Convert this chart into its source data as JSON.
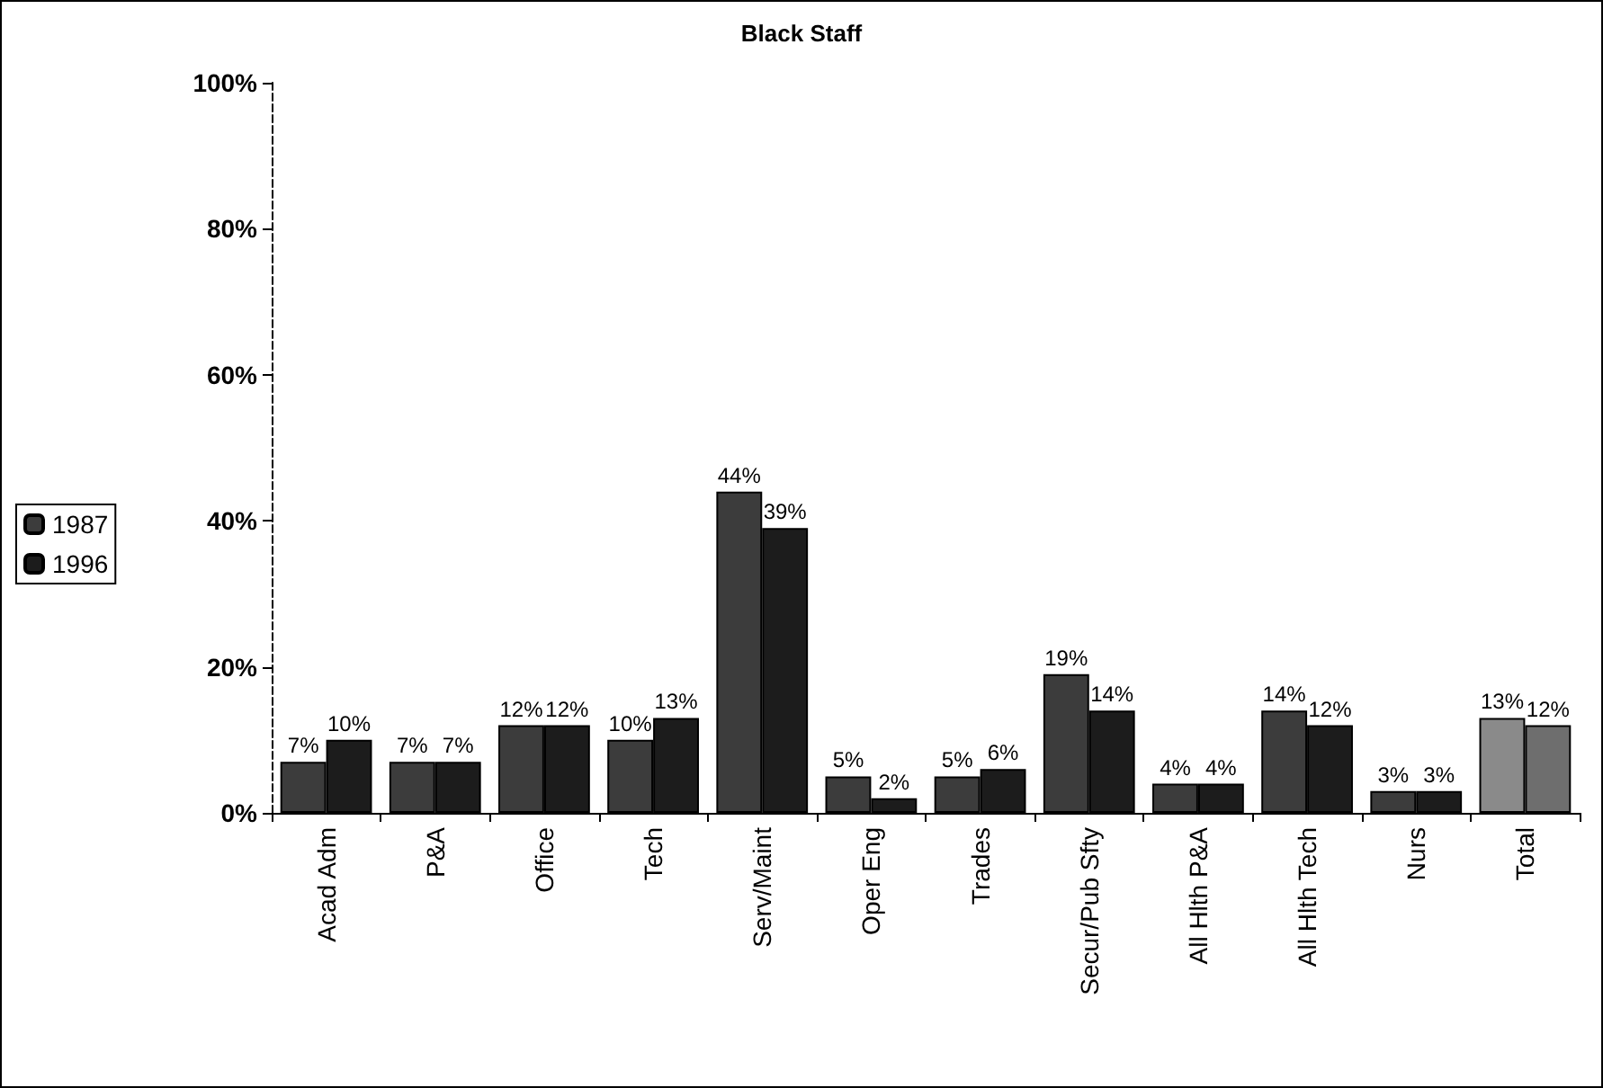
{
  "chart_data": {
    "type": "bar",
    "title": "Black Staff",
    "categories": [
      "Acad Adm",
      "P&A",
      "Office",
      "Tech",
      "Serv/Maint",
      "Oper Eng",
      "Trades",
      "Secur/Pub Sfty",
      "All Hlth P&A",
      "All Hlth Tech",
      "Nurs",
      "Total"
    ],
    "series": [
      {
        "name": "1987",
        "color": "#3c3c3c",
        "colors": [
          "#3c3c3c",
          "#3c3c3c",
          "#3c3c3c",
          "#3c3c3c",
          "#3c3c3c",
          "#3c3c3c",
          "#3c3c3c",
          "#3c3c3c",
          "#3c3c3c",
          "#3c3c3c",
          "#3c3c3c",
          "#8a8a8a"
        ],
        "values": [
          7,
          7,
          12,
          10,
          44,
          5,
          5,
          19,
          4,
          14,
          3,
          13
        ],
        "value_labels": [
          "7%",
          "7%",
          "12%",
          "10%",
          "44%",
          "5%",
          "5%",
          "19%",
          "4%",
          "14%",
          "3%",
          "13%"
        ]
      },
      {
        "name": "1996",
        "color": "#1c1c1c",
        "colors": [
          "#1c1c1c",
          "#1c1c1c",
          "#1c1c1c",
          "#1c1c1c",
          "#1c1c1c",
          "#1c1c1c",
          "#1c1c1c",
          "#1c1c1c",
          "#1c1c1c",
          "#1c1c1c",
          "#1c1c1c",
          "#6e6e6e"
        ],
        "values": [
          10,
          7,
          12,
          13,
          39,
          2,
          6,
          14,
          4,
          12,
          3,
          12
        ],
        "value_labels": [
          "10%",
          "7%",
          "12%",
          "13%",
          "39%",
          "2%",
          "6%",
          "14%",
          "4%",
          "12%",
          "3%",
          "12%"
        ]
      }
    ],
    "ylim": [
      0,
      100
    ],
    "yticks": [
      {
        "value": 0,
        "label": "0%"
      },
      {
        "value": 20,
        "label": "20%"
      },
      {
        "value": 40,
        "label": "40%"
      },
      {
        "value": 60,
        "label": "60%"
      },
      {
        "value": 80,
        "label": "80%"
      },
      {
        "value": 100,
        "label": "100%"
      }
    ],
    "grid": false,
    "legend": "left"
  }
}
